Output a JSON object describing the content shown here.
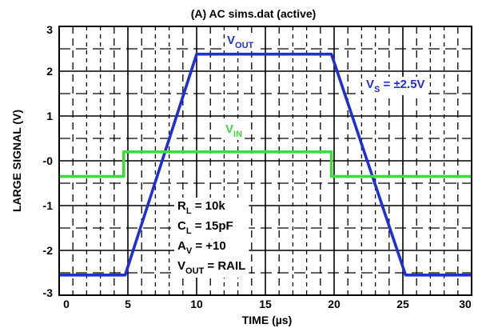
{
  "chart_data": {
    "type": "line",
    "title": "(A) AC sims.dat (active)",
    "xlabel": "TIME (µs)",
    "ylabel": "LARGE SIGNAL (V)",
    "xlim": [
      0,
      30
    ],
    "ylim": [
      -3,
      3
    ],
    "x_ticks": [
      "0",
      "5",
      "10",
      "15",
      "20",
      "25",
      "30"
    ],
    "y_ticks": [
      "3",
      "2",
      "1",
      "-0",
      "-1",
      "-2",
      "-3"
    ],
    "y_tick_values": [
      3,
      2,
      1,
      0,
      -1,
      -2,
      -3
    ],
    "grid": true,
    "series": [
      {
        "name": "VOUT",
        "color": "#1f2fd6",
        "x": [
          -0.5,
          4.8,
          10.0,
          19.8,
          25.2,
          30.5
        ],
        "y": [
          -2.55,
          -2.55,
          2.38,
          2.38,
          -2.55,
          -2.55
        ]
      },
      {
        "name": "VIN",
        "color": "#3ddc3d",
        "x": [
          -0.5,
          4.7,
          4.7,
          19.8,
          19.8,
          30.5
        ],
        "y": [
          -0.35,
          -0.35,
          0.2,
          0.2,
          -0.35,
          -0.35
        ]
      }
    ],
    "annotations": {
      "vout": {
        "main": "V",
        "sub": "OUT"
      },
      "vin": {
        "main": "V",
        "sub": "IN"
      },
      "vs": {
        "main": "V",
        "sub": "S",
        "rest": " = ±2.5V"
      },
      "conditions": [
        {
          "main": "R",
          "sub": "L",
          "rest": " = 10k"
        },
        {
          "main": "C",
          "sub": "L",
          "rest": " = 15pF"
        },
        {
          "main": "A",
          "sub": "V",
          "rest": " = +10"
        },
        {
          "main": "V",
          "sub": "OUT",
          "rest": " = RAIL"
        }
      ]
    }
  }
}
